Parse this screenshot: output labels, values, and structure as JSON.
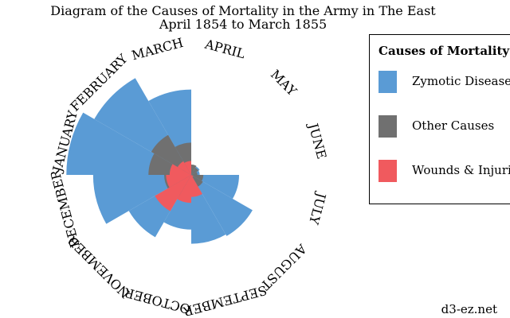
{
  "title_lines": [
    "Diagram of the Causes of Mortality in the Army in The East",
    "April 1854 to March 1855"
  ],
  "legend": {
    "title": "Causes of Mortality",
    "items": [
      {
        "label": "Zymotic Diseases",
        "color": "#5a9bd5"
      },
      {
        "label": "Other Causes",
        "color": "#707070"
      },
      {
        "label": "Wounds & Injuries",
        "color": "#f05a5e"
      }
    ]
  },
  "credit": "d3-ez.net",
  "chart_data": {
    "type": "polar-area",
    "title": "Diagram of the Causes of Mortality in the Army in The East — April 1854 to March 1855",
    "categories": [
      "APRIL",
      "MAY",
      "JUNE",
      "JULY",
      "AUGUST",
      "SEPTEMBER",
      "OCTOBER",
      "NOVEMBER",
      "DECEMBER",
      "JANUARY",
      "FEBRUARY",
      "MARCH"
    ],
    "series": [
      {
        "name": "Zymotic Diseases",
        "color": "#5a9bd5",
        "values": [
          1.4,
          6.2,
          4.7,
          150,
          328.5,
          312.2,
          197,
          340.6,
          631.5,
          1022.8,
          822.8,
          480.3
        ]
      },
      {
        "name": "Other Causes",
        "color": "#707070",
        "values": [
          7,
          4.6,
          2.5,
          9.6,
          11.9,
          27.7,
          50.1,
          42.8,
          48,
          120,
          140.1,
          68.6
        ]
      },
      {
        "name": "Wounds & Injuries",
        "color": "#f05a5e",
        "values": [
          0,
          0,
          0,
          0,
          0.4,
          32.1,
          51.7,
          115.8,
          41.7,
          30.7,
          16.3,
          12.8
        ]
      }
    ]
  }
}
